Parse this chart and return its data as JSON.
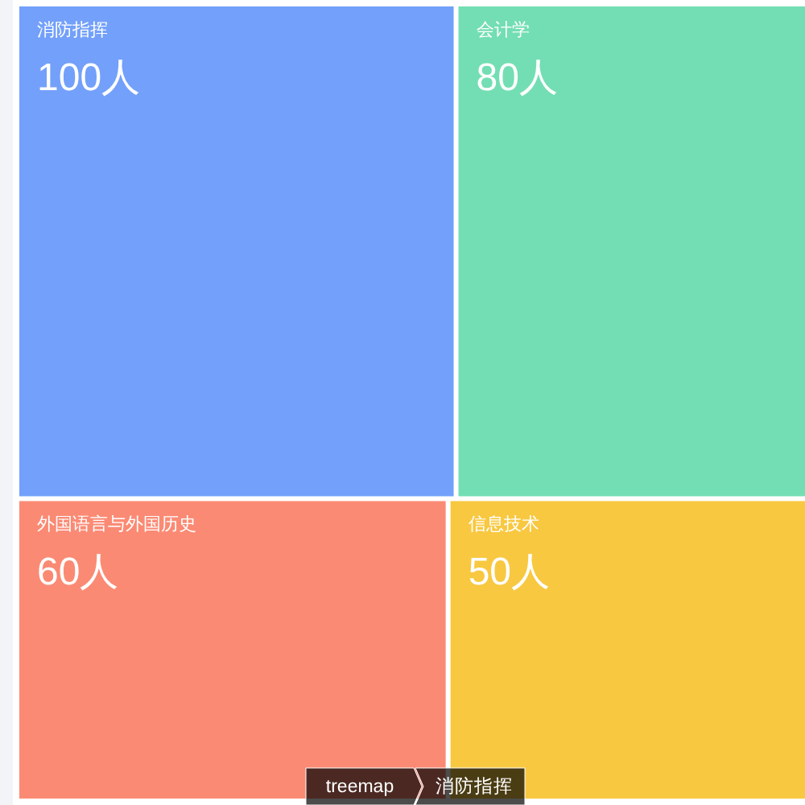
{
  "chart_data": {
    "type": "other",
    "categories": [
      "消防指挥",
      "会计学",
      "外国语言与外国历史",
      "信息技术"
    ],
    "values": [
      100,
      80,
      60,
      50
    ],
    "value_labels": [
      "100人",
      "80人",
      "60人",
      "50人"
    ],
    "colors": [
      "#73a0fa",
      "#73deb3",
      "#fb8a74",
      "#f8c841"
    ],
    "annotations": [
      "treemap",
      "消防指挥"
    ]
  }
}
